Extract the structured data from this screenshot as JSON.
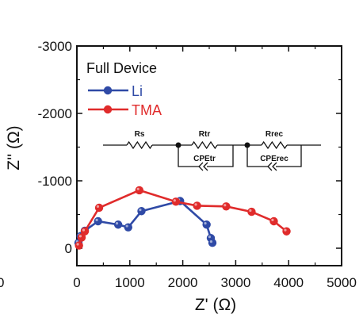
{
  "chart_data": {
    "type": "line",
    "xlabel": "Z' (Ω)",
    "ylabel": "Z'' (Ω)",
    "xlim": [
      0,
      5000
    ],
    "ylim": [
      0,
      -3000
    ],
    "y_inverted": true,
    "x_ticks": [
      "0",
      "1000",
      "2000",
      "3000",
      "4000",
      "5000"
    ],
    "y_ticks": [
      "-3000",
      "-2000",
      "-1000",
      "0"
    ],
    "edge_labels": [
      "0"
    ],
    "legend": {
      "title": "Full Device",
      "placement": "top-left"
    },
    "series": [
      {
        "name": "Li",
        "color": "#2f4aa6",
        "points": [
          [
            30,
            -80
          ],
          [
            70,
            -180
          ],
          [
            150,
            -260
          ],
          [
            400,
            -400
          ],
          [
            780,
            -350
          ],
          [
            970,
            -310
          ],
          [
            1220,
            -550
          ],
          [
            1950,
            -700
          ],
          [
            2450,
            -350
          ],
          [
            2530,
            -150
          ],
          [
            2560,
            -80
          ]
        ]
      },
      {
        "name": "TMA",
        "color": "#e02b2b",
        "points": [
          [
            40,
            -40
          ],
          [
            90,
            -160
          ],
          [
            150,
            -250
          ],
          [
            420,
            -600
          ],
          [
            1180,
            -860
          ],
          [
            1870,
            -690
          ],
          [
            2270,
            -630
          ],
          [
            2820,
            -620
          ],
          [
            3300,
            -540
          ],
          [
            3720,
            -400
          ],
          [
            3960,
            -250
          ]
        ]
      }
    ],
    "circuit": {
      "labels": [
        "Rs",
        "Rtr",
        "CPEtr",
        "Rrec",
        "CPErec"
      ]
    }
  }
}
